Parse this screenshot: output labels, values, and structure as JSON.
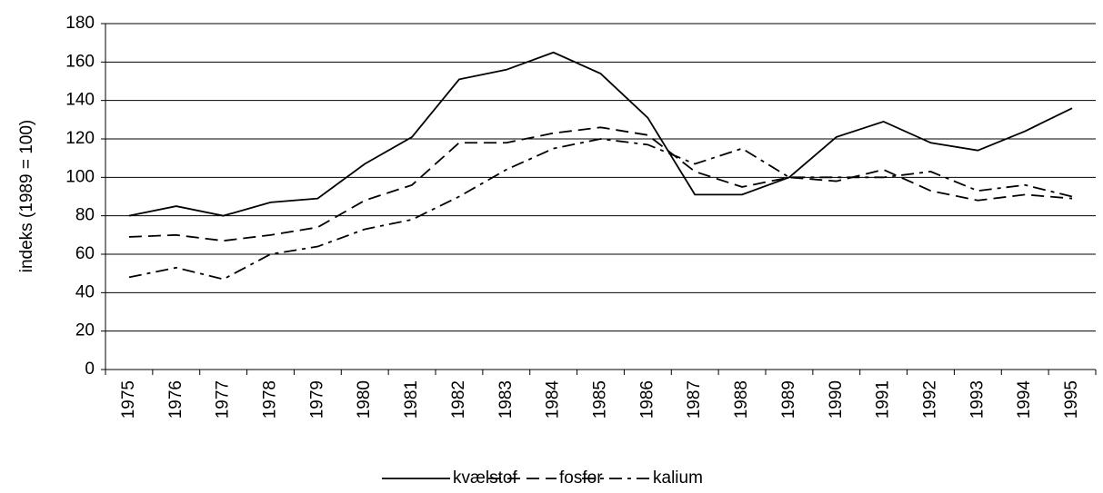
{
  "chart_data": {
    "type": "line",
    "y_label": "indeks (1989 = 100)",
    "categories": [
      "1975",
      "1976",
      "1977",
      "1978",
      "1979",
      "1980",
      "1981",
      "1982",
      "1983",
      "1984",
      "1985",
      "1986",
      "1987",
      "1988",
      "1989",
      "1990",
      "1991",
      "1992",
      "1993",
      "1994",
      "1995"
    ],
    "series": [
      {
        "name": "kvælstof",
        "color": "#000000",
        "style": "solid",
        "values": [
          80,
          85,
          80,
          87,
          89,
          107,
          121,
          151,
          156,
          165,
          154,
          131,
          91,
          91,
          100,
          121,
          129,
          118,
          114,
          124,
          136
        ]
      },
      {
        "name": "fosfor",
        "color": "#000000",
        "style": "dashed",
        "values": [
          69,
          70,
          67,
          70,
          74,
          88,
          96,
          118,
          118,
          123,
          126,
          122,
          103,
          95,
          100,
          98,
          104,
          93,
          88,
          91,
          89
        ]
      },
      {
        "name": "kalium",
        "color": "#000000",
        "style": "dashdot",
        "values": [
          48,
          53,
          47,
          60,
          64,
          73,
          78,
          90,
          104,
          115,
          120,
          117,
          107,
          115,
          100,
          100,
          100,
          103,
          93,
          96,
          90
        ]
      }
    ],
    "ylim": [
      0,
      180
    ],
    "yticks": [
      0,
      20,
      40,
      60,
      80,
      100,
      120,
      140,
      160,
      180
    ],
    "grid": true,
    "legend": "bottom"
  }
}
